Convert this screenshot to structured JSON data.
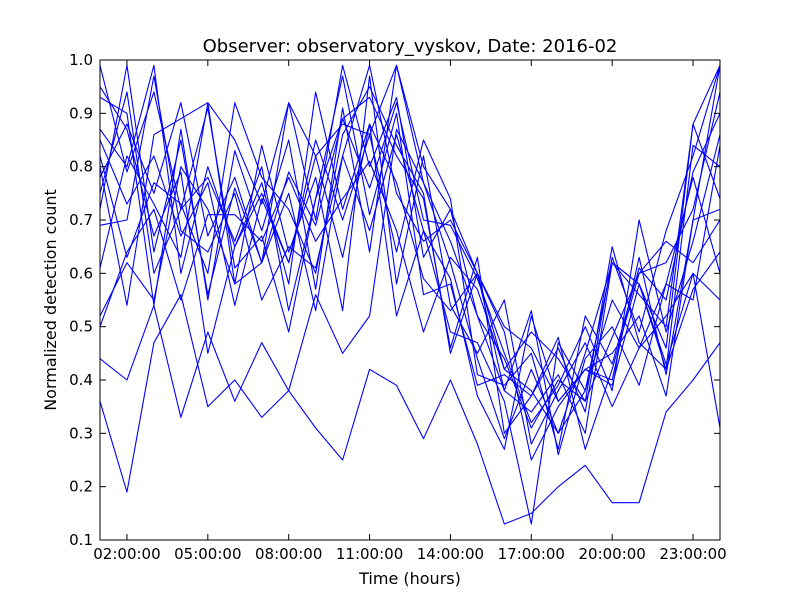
{
  "chart_data": {
    "type": "line",
    "title": "Observer: observatory_vyskov, Date: 2016-02",
    "xlabel": "Time (hours)",
    "ylabel": "Normalized detection count",
    "xlim": [
      1,
      24
    ],
    "ylim": [
      0.1,
      1.0
    ],
    "x_ticks": [
      {
        "value": 2,
        "label": "02:00:00"
      },
      {
        "value": 5,
        "label": "05:00:00"
      },
      {
        "value": 8,
        "label": "08:00:00"
      },
      {
        "value": 11,
        "label": "11:00:00"
      },
      {
        "value": 14,
        "label": "14:00:00"
      },
      {
        "value": 17,
        "label": "17:00:00"
      },
      {
        "value": 20,
        "label": "20:00:00"
      },
      {
        "value": 23,
        "label": "23:00:00"
      }
    ],
    "y_ticks": [
      {
        "value": 0.1,
        "label": "0.1"
      },
      {
        "value": 0.2,
        "label": "0.2"
      },
      {
        "value": 0.3,
        "label": "0.3"
      },
      {
        "value": 0.4,
        "label": "0.4"
      },
      {
        "value": 0.5,
        "label": "0.5"
      },
      {
        "value": 0.6,
        "label": "0.6"
      },
      {
        "value": 0.7,
        "label": "0.7"
      },
      {
        "value": 0.8,
        "label": "0.8"
      },
      {
        "value": 0.9,
        "label": "0.9"
      },
      {
        "value": 1.0,
        "label": "1.0"
      }
    ],
    "grid": false,
    "legend": "none",
    "line_color": "#0000ff",
    "x": [
      1,
      2,
      3,
      4,
      5,
      6,
      7,
      8,
      9,
      10,
      11,
      12,
      13,
      14,
      15,
      16,
      17,
      18,
      19,
      20,
      21,
      22,
      23,
      24
    ],
    "series": [
      {
        "values": [
          0.87,
          0.8,
          0.99,
          0.6,
          0.8,
          0.65,
          0.75,
          0.62,
          0.82,
          0.88,
          0.86,
          0.99,
          0.8,
          0.72,
          0.6,
          0.42,
          0.38,
          0.3,
          0.45,
          0.62,
          0.58,
          0.46,
          0.88,
          0.99
        ]
      },
      {
        "values": [
          0.72,
          0.99,
          0.64,
          0.85,
          0.56,
          0.76,
          0.62,
          0.92,
          0.7,
          0.99,
          0.8,
          0.93,
          0.63,
          0.72,
          0.52,
          0.44,
          0.31,
          0.4,
          0.36,
          0.48,
          0.6,
          0.62,
          0.72,
          0.94
        ]
      },
      {
        "values": [
          0.44,
          0.4,
          0.54,
          0.33,
          0.49,
          0.36,
          0.47,
          0.38,
          0.56,
          0.45,
          0.52,
          0.87,
          0.77,
          0.62,
          0.44,
          0.29,
          0.42,
          0.3,
          0.38,
          0.55,
          0.46,
          0.52,
          0.6,
          0.55
        ]
      },
      {
        "values": [
          0.52,
          0.62,
          0.55,
          0.8,
          0.72,
          0.58,
          0.62,
          0.75,
          0.53,
          0.82,
          0.99,
          0.75,
          0.66,
          0.7,
          0.6,
          0.5,
          0.46,
          0.36,
          0.42,
          0.4,
          0.63,
          0.41,
          0.7,
          0.72
        ]
      },
      {
        "values": [
          0.95,
          0.87,
          0.67,
          0.79,
          0.45,
          0.65,
          0.77,
          0.58,
          0.94,
          0.72,
          0.88,
          0.77,
          0.59,
          0.53,
          0.6,
          0.38,
          0.53,
          0.26,
          0.44,
          0.5,
          0.39,
          0.58,
          0.78,
          0.6
        ]
      },
      {
        "values": [
          0.99,
          0.79,
          0.94,
          0.72,
          0.91,
          0.61,
          0.67,
          0.49,
          0.74,
          0.89,
          0.93,
          0.82,
          0.74,
          0.46,
          0.63,
          0.3,
          0.37,
          0.46,
          0.34,
          0.63,
          0.49,
          0.68,
          0.82,
          0.99
        ]
      },
      {
        "values": [
          0.36,
          0.19,
          0.47,
          0.56,
          0.35,
          0.4,
          0.33,
          0.38,
          0.31,
          0.25,
          0.42,
          0.39,
          0.29,
          0.4,
          0.28,
          0.13,
          0.15,
          0.2,
          0.24,
          0.17,
          0.17,
          0.34,
          0.4,
          0.47
        ]
      },
      {
        "values": [
          0.69,
          0.7,
          0.97,
          0.68,
          0.64,
          0.75,
          0.55,
          0.65,
          0.61,
          0.82,
          0.68,
          0.86,
          0.68,
          0.59,
          0.37,
          0.27,
          0.52,
          0.36,
          0.42,
          0.39,
          0.58,
          0.43,
          0.6,
          0.31
        ]
      },
      {
        "values": [
          0.8,
          0.54,
          0.86,
          0.89,
          0.92,
          0.85,
          0.73,
          0.92,
          0.82,
          0.63,
          0.88,
          0.52,
          0.68,
          0.49,
          0.47,
          0.36,
          0.13,
          0.47,
          0.38,
          0.62,
          0.58,
          0.42,
          0.84,
          0.8
        ]
      },
      {
        "values": [
          0.75,
          0.94,
          0.6,
          0.72,
          0.78,
          0.66,
          0.8,
          0.53,
          0.74,
          0.97,
          0.71,
          0.9,
          0.56,
          0.58,
          0.39,
          0.41,
          0.37,
          0.48,
          0.27,
          0.42,
          0.6,
          0.66,
          0.62,
          0.7
        ]
      },
      {
        "values": [
          0.82,
          0.63,
          0.77,
          0.73,
          0.6,
          0.92,
          0.78,
          0.72,
          0.6,
          0.86,
          0.95,
          0.84,
          0.75,
          0.45,
          0.6,
          0.49,
          0.25,
          0.35,
          0.42,
          0.45,
          0.52,
          0.37,
          0.7,
          0.99
        ]
      },
      {
        "values": [
          0.93,
          0.9,
          0.54,
          0.87,
          0.55,
          0.83,
          0.68,
          0.85,
          0.57,
          0.91,
          0.64,
          0.99,
          0.77,
          0.66,
          0.52,
          0.38,
          0.34,
          0.41,
          0.3,
          0.62,
          0.56,
          0.5,
          0.88,
          0.74
        ]
      },
      {
        "values": [
          0.61,
          0.82,
          0.73,
          0.63,
          0.92,
          0.58,
          0.84,
          0.64,
          0.78,
          0.53,
          0.97,
          0.58,
          0.82,
          0.54,
          0.45,
          0.55,
          0.28,
          0.38,
          0.47,
          0.35,
          0.46,
          0.58,
          0.55,
          0.84
        ]
      },
      {
        "values": [
          0.5,
          0.64,
          0.72,
          0.55,
          0.71,
          0.71,
          0.66,
          0.78,
          0.66,
          0.74,
          0.81,
          0.68,
          0.49,
          0.63,
          0.57,
          0.42,
          0.49,
          0.44,
          0.36,
          0.65,
          0.47,
          0.42,
          0.57,
          0.64
        ]
      },
      {
        "values": [
          0.85,
          0.73,
          0.82,
          0.67,
          0.77,
          0.54,
          0.74,
          0.62,
          0.85,
          0.7,
          0.86,
          0.64,
          0.85,
          0.74,
          0.41,
          0.39,
          0.45,
          0.27,
          0.52,
          0.43,
          0.61,
          0.55,
          0.79,
          0.9
        ]
      },
      {
        "values": [
          0.78,
          0.88,
          0.75,
          0.92,
          0.67,
          0.78,
          0.62,
          0.79,
          0.69,
          0.89,
          0.76,
          0.92,
          0.7,
          0.69,
          0.59,
          0.45,
          0.32,
          0.39,
          0.5,
          0.38,
          0.7,
          0.49,
          0.66,
          0.86
        ]
      }
    ]
  }
}
